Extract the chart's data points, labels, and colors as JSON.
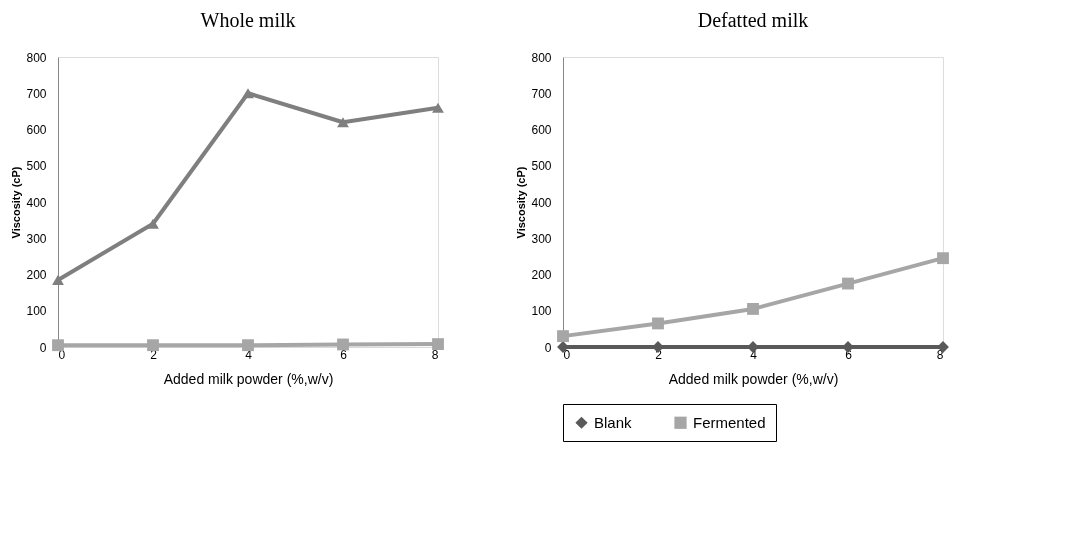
{
  "chart_data": [
    {
      "type": "line",
      "title": "Whole milk",
      "xlabel": "Added milk powder (%,w/v)",
      "ylabel": "Viscosity (cP)",
      "x": [
        0,
        2,
        4,
        6,
        8
      ],
      "xlim": [
        0,
        8
      ],
      "xticks": [
        0,
        2,
        4,
        6,
        8
      ],
      "ylim": [
        0,
        800
      ],
      "yticks": [
        0,
        100,
        200,
        300,
        400,
        500,
        600,
        700,
        800
      ],
      "grid": false,
      "legend": false,
      "line_style": "solid",
      "series": [
        {
          "color": "#7f7f7f",
          "marker": "triangle",
          "values": [
            185,
            340,
            700,
            620,
            660
          ]
        },
        {
          "color": "#a6a6a6",
          "marker": "square",
          "values": [
            5,
            5,
            5,
            7,
            8
          ]
        }
      ]
    },
    {
      "type": "line",
      "title": "Defatted milk",
      "xlabel": "Added milk powder (%,w/v)",
      "ylabel": "Viscosity (cP)",
      "x": [
        0,
        2,
        4,
        6,
        8
      ],
      "xlim": [
        0,
        8
      ],
      "xticks": [
        0,
        2,
        4,
        6,
        8
      ],
      "ylim": [
        0,
        800
      ],
      "yticks": [
        0,
        100,
        200,
        300,
        400,
        500,
        600,
        700,
        800
      ],
      "grid": false,
      "legend": "bottom",
      "line_style": "solid",
      "series": [
        {
          "name": "Blank",
          "color": "#595959",
          "marker": "diamond",
          "values": [
            0,
            0,
            0,
            0,
            0
          ]
        },
        {
          "name": "Fermented",
          "color": "#a6a6a6",
          "marker": "square",
          "values": [
            30,
            65,
            105,
            175,
            245
          ]
        }
      ]
    }
  ]
}
